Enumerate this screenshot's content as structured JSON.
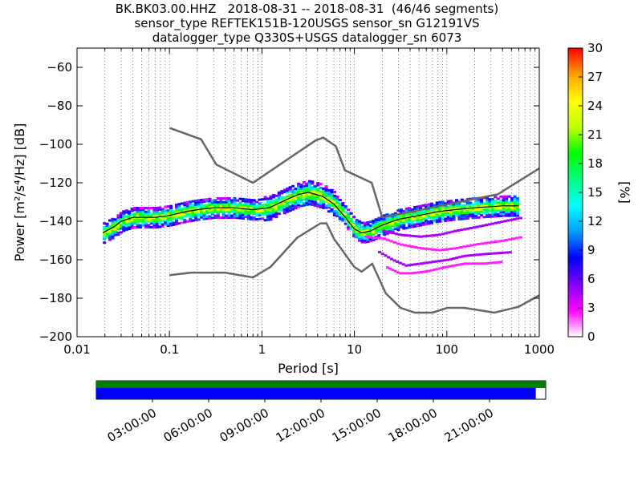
{
  "title_lines": [
    "BK.BK03.00.HHZ   2018-08-31 -- 2018-08-31  (46/46 segments)",
    "sensor_type REFTEK151B-120USGS sensor_sn G12191VS",
    "datalogger_type Q330S+USGS datalogger_sn 6073"
  ],
  "chart_data": {
    "type": "heatmap",
    "xlabel": "Period [s]",
    "ylabel": "Power [m²/s⁴/Hz] [dB]",
    "xscale": "log",
    "xlim": [
      0.01,
      1000
    ],
    "ylim": [
      -200,
      -50
    ],
    "x_ticks": [
      0.01,
      0.1,
      1,
      10,
      100,
      1000
    ],
    "x_tick_labels": [
      "0.01",
      "0.1",
      "1",
      "10",
      "100",
      "1000"
    ],
    "y_ticks": [
      -200,
      -180,
      -160,
      -140,
      -120,
      -100,
      -80,
      -60
    ],
    "y_tick_labels": [
      "−200",
      "−180",
      "−160",
      "−140",
      "−120",
      "−100",
      "−80",
      "−60"
    ],
    "grid": "dotted vertical",
    "colorbar": {
      "label": "[%]",
      "range": [
        0,
        30
      ],
      "ticks": [
        0,
        3,
        6,
        9,
        12,
        15,
        18,
        21,
        24,
        27,
        30
      ],
      "tick_labels": [
        "0",
        "3",
        "6",
        "9",
        "12",
        "15",
        "18",
        "21",
        "24",
        "27",
        "30"
      ],
      "colormap": [
        "#ffffff",
        "#ff00ff",
        "#8000ff",
        "#0000ff",
        "#00a0ff",
        "#00ffff",
        "#00ff80",
        "#00ff00",
        "#c0ff00",
        "#ffff00",
        "#ffa000",
        "#ff0000"
      ]
    },
    "nhnm": {
      "name": "New High Noise Model",
      "color": "#666666",
      "x": [
        0.1,
        0.22,
        0.32,
        0.8,
        3.8,
        4.6,
        6.3,
        7.9,
        15.4,
        20,
        354.8,
        1000
      ],
      "y": [
        -91.5,
        -97.4,
        -110.5,
        -120,
        -98,
        -96.5,
        -101,
        -113.5,
        -120,
        -138,
        -126,
        -112.5
      ]
    },
    "nlnm": {
      "name": "New Low Noise Model",
      "color": "#666666",
      "x": [
        0.1,
        0.17,
        0.4,
        0.8,
        1.24,
        2.4,
        4.3,
        5,
        6,
        10,
        12,
        15.6,
        21.9,
        31.6,
        45,
        70,
        101,
        154,
        328,
        600,
        1000
      ],
      "y": [
        -168,
        -166.7,
        -166.7,
        -169.2,
        -163.7,
        -148.6,
        -141.1,
        -141.1,
        -149,
        -163.8,
        -166.2,
        -162.1,
        -177.5,
        -185,
        -187.5,
        -187.5,
        -185,
        -185,
        -187.5,
        -184.4,
        -178.5
      ]
    },
    "mode_curve": {
      "color": "#000000",
      "x": [
        0.019,
        0.025,
        0.03,
        0.04,
        0.05,
        0.07,
        0.1,
        0.15,
        0.2,
        0.3,
        0.5,
        0.8,
        1.2,
        1.8,
        2.5,
        3.2,
        4.5,
        6,
        8,
        10,
        12,
        15,
        20,
        30,
        50,
        80,
        120,
        200,
        400,
        600
      ],
      "y": [
        -146,
        -143,
        -140,
        -138,
        -138,
        -138,
        -137,
        -135,
        -134,
        -133,
        -133,
        -134,
        -133,
        -129,
        -126,
        -125,
        -127,
        -131,
        -138,
        -144,
        -146,
        -145,
        -142,
        -139,
        -137,
        -135,
        -134,
        -133,
        -132,
        -132
      ]
    },
    "outlier_curves": [
      {
        "x": [
          13,
          20,
          30,
          50,
          80,
          120,
          200,
          400,
          650
        ],
        "y": [
          -148,
          -149,
          -152,
          -154,
          -155,
          -154,
          -152,
          -150,
          -148
        ]
      },
      {
        "x": [
          18,
          25,
          35,
          50,
          70,
          100,
          150,
          250,
          500
        ],
        "y": [
          -156,
          -160,
          -163,
          -162,
          -161,
          -160,
          -158,
          -157,
          -156
        ]
      },
      {
        "x": [
          22,
          30,
          40,
          60,
          90,
          150,
          250,
          400
        ],
        "y": [
          -164,
          -167,
          -167,
          -166,
          -164,
          -162,
          -162,
          -161
        ]
      },
      {
        "x": [
          20,
          30,
          50,
          80,
          120,
          200,
          400,
          650
        ],
        "y": [
          -145,
          -147,
          -148,
          -147,
          -145,
          -143,
          -140,
          -138
        ]
      }
    ],
    "timeline": {
      "bar_color": "#0000ff",
      "data_color": "#008000",
      "coverage": [
        0.0,
        0.978
      ],
      "tick_labels": [
        "03:00:00",
        "06:00:00",
        "09:00:00",
        "12:00:00",
        "15:00:00",
        "18:00:00",
        "21:00:00"
      ],
      "tick_hours": [
        3,
        6,
        9,
        12,
        15,
        18,
        21
      ]
    }
  }
}
